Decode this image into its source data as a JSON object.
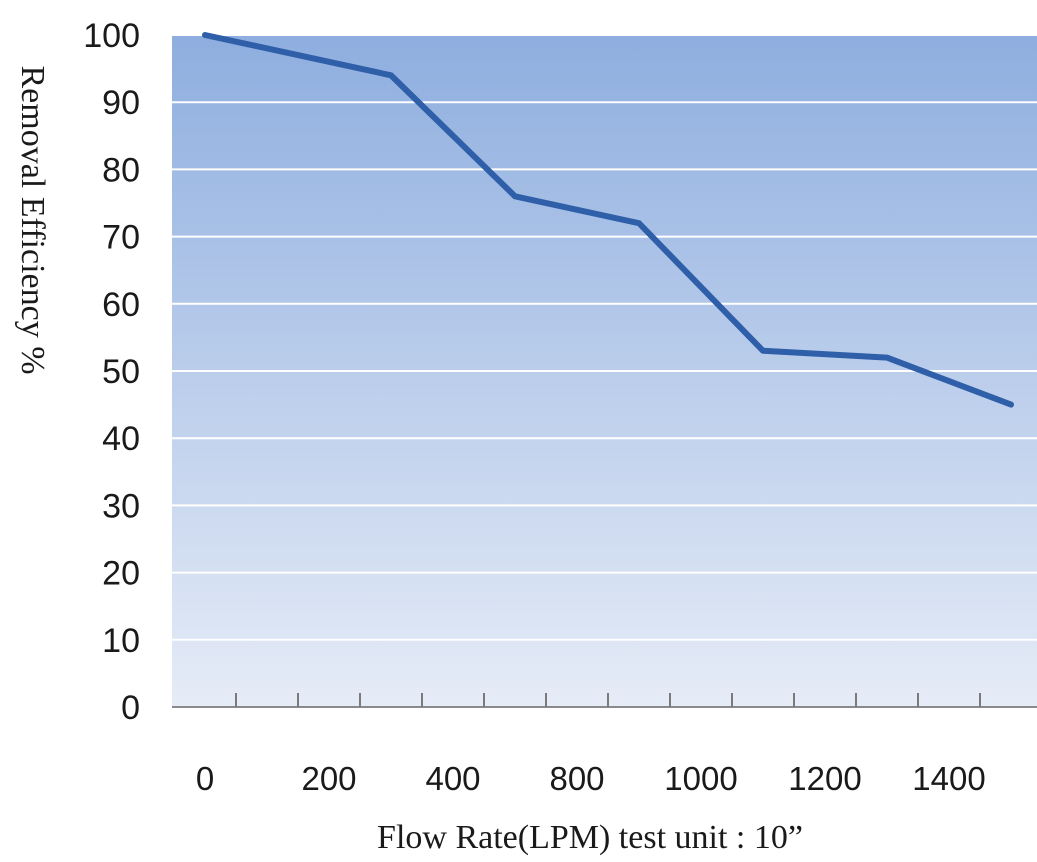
{
  "chart_data": {
    "type": "line",
    "xlabel": "Flow Rate(LPM) test unit : 10”",
    "ylabel": "Removal Efficiency %",
    "x_tick_labels": [
      "0",
      "200",
      "400",
      "800",
      "1000",
      "1200",
      "1400"
    ],
    "y_ticks": [
      "0",
      "10",
      "20",
      "30",
      "40",
      "50",
      "60",
      "70",
      "80",
      "90",
      "100"
    ],
    "ylim": [
      0,
      100
    ],
    "grid": "horizontal",
    "background_gradient": [
      "#8eaedf",
      "#e6ecf7"
    ],
    "line_color": "#2f5fa8",
    "series": [
      {
        "x_category_position": [
          0,
          3.0,
          5.0,
          7.0,
          9.0,
          11.0,
          13.0
        ],
        "values": [
          100,
          94,
          76,
          72,
          53,
          52,
          45
        ]
      }
    ]
  }
}
